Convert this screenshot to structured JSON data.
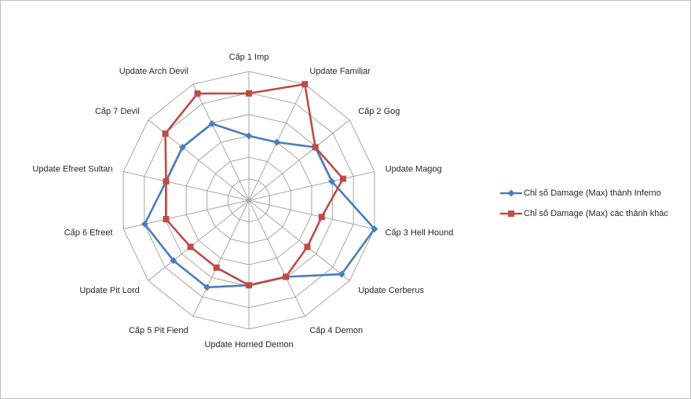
{
  "chart_data": {
    "type": "radar",
    "title": "",
    "categories": [
      "Cấp 1 Imp",
      "Update Familiar",
      "Cấp 2 Gog",
      "Update Magog",
      "Cấp 3 Hell Hound",
      "Update Cerberus",
      "Cấp 4 Demon",
      "Update Horned Demon",
      "Cấp 5 Pit Fiend",
      "Update Pit Lord",
      "Cấp 6 Efreet",
      "Update Efreet Sultan",
      "Cấp 7 Devil",
      "Update Arch Devil"
    ],
    "rlim": [
      0,
      1
    ],
    "rings": 6,
    "legend_position": "right",
    "series": [
      {
        "name": "Chỉ số Damage (Max) thành Inferno",
        "color": "#4a7ebb",
        "marker": "diamond",
        "values": [
          0.5,
          0.5,
          0.66,
          0.66,
          1.0,
          0.92,
          0.66,
          0.66,
          0.75,
          0.75,
          0.83,
          0.66,
          0.66,
          0.66
        ]
      },
      {
        "name": "Chỉ số Damage (Max) các thành khác",
        "color": "#be4b48",
        "marker": "square",
        "values": [
          0.83,
          1.0,
          0.66,
          0.75,
          0.58,
          0.58,
          0.66,
          0.66,
          0.58,
          0.58,
          0.66,
          0.66,
          0.83,
          0.92
        ]
      }
    ]
  }
}
